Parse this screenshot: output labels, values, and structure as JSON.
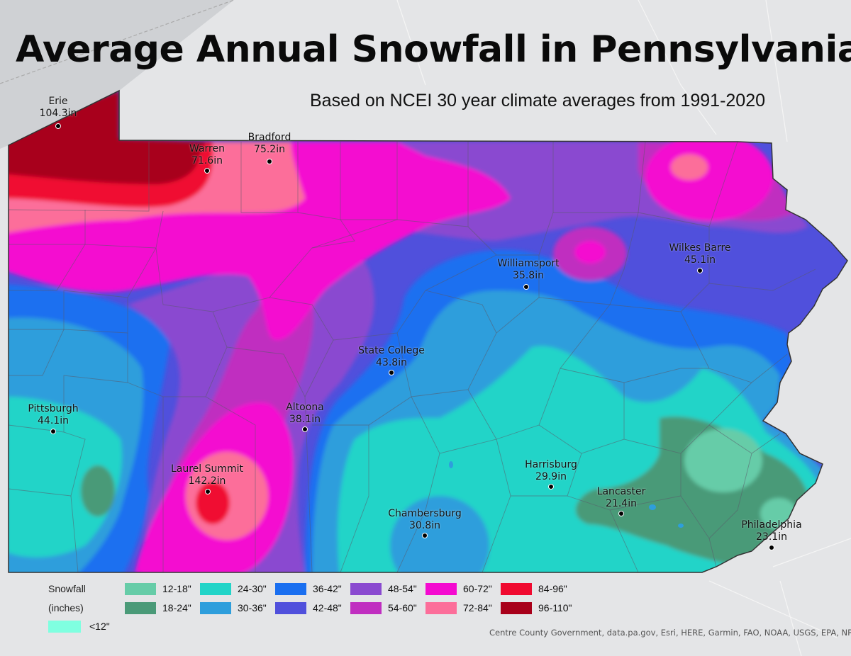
{
  "title": "Average Annual Snowfall in Pennsylvania",
  "subtitle": "Based on NCEI 30 year climate averages from 1991-2020",
  "cities": [
    {
      "name": "Erie",
      "value": "104.3in"
    },
    {
      "name": "Warren",
      "value": "71.6in"
    },
    {
      "name": "Bradford",
      "value": "75.2in"
    },
    {
      "name": "Williamsport",
      "value": "35.8in"
    },
    {
      "name": "Wilkes Barre",
      "value": "45.1in"
    },
    {
      "name": "State College",
      "value": "43.8in"
    },
    {
      "name": "Pittsburgh",
      "value": "44.1in"
    },
    {
      "name": "Altoona",
      "value": "38.1in"
    },
    {
      "name": "Laurel Summit",
      "value": "142.2in"
    },
    {
      "name": "Harrisburg",
      "value": "29.9in"
    },
    {
      "name": "Lancaster",
      "value": "21.4in"
    },
    {
      "name": "Chambersburg",
      "value": "30.8in"
    },
    {
      "name": "Philadelphia",
      "value": "23.1in"
    }
  ],
  "legend": {
    "title_line1": "Snowfall",
    "title_line2": "(inches)",
    "classes": [
      {
        "label": "<12\"",
        "color": "#7fffe0"
      },
      {
        "label": "12-18\"",
        "color": "#66cca8"
      },
      {
        "label": "18-24\"",
        "color": "#4a9a78"
      },
      {
        "label": "24-30\"",
        "color": "#22d4c8"
      },
      {
        "label": "30-36\"",
        "color": "#2e9edc"
      },
      {
        "label": "36-42\"",
        "color": "#1a6ff0"
      },
      {
        "label": "42-48\"",
        "color": "#5050dc"
      },
      {
        "label": "48-54\"",
        "color": "#8a4ad0"
      },
      {
        "label": "54-60\"",
        "color": "#c02ec0"
      },
      {
        "label": "60-72\"",
        "color": "#f40ad0"
      },
      {
        "label": "72-84\"",
        "color": "#fc6e9a"
      },
      {
        "label": "84-96\"",
        "color": "#f00a30"
      },
      {
        "label": "96-110\"",
        "color": "#a8001a"
      }
    ]
  },
  "credits": "Centre County Government, data.pa.gov, Esri, HERE, Garmin, FAO, NOAA, USGS, EPA, NPS"
}
